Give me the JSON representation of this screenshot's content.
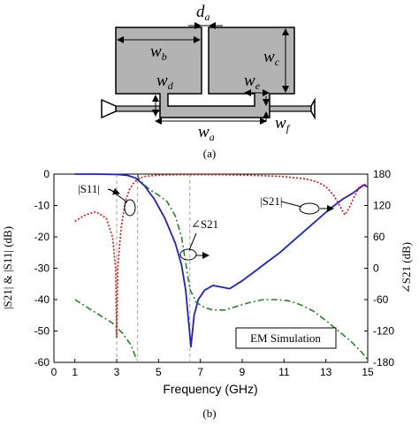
{
  "figure": {
    "panel_a_caption": "(a)",
    "panel_b_caption": "(b)"
  },
  "diagram": {
    "labels": {
      "da_main": "d",
      "da_sub": "a",
      "wb_main": "w",
      "wb_sub": "b",
      "wc_main": "w",
      "wc_sub": "c",
      "wd_main": "w",
      "wd_sub": "d",
      "we_main": "w",
      "we_sub": "e",
      "wa_main": "w",
      "wa_sub": "a",
      "wf_main": "w",
      "wf_sub": "f"
    },
    "colors": {
      "patch_fill": "#b3b3b3",
      "outline": "#000000"
    }
  },
  "chart_data": {
    "type": "line",
    "xlabel": "Frequency (GHz)",
    "ylabel_left": "|S21| & |S11| (dB)",
    "ylabel_right": "∠S21 (dB)",
    "xlim": [
      0,
      15
    ],
    "ylim_left": [
      -60,
      0
    ],
    "ylim_right": [
      -180,
      180
    ],
    "x_ticks": [
      "0",
      "1",
      "3",
      "5",
      "7",
      "9",
      "11",
      "13",
      "15"
    ],
    "x_tick_values": [
      0,
      1,
      3,
      5,
      7,
      9,
      11,
      13,
      15
    ],
    "y_ticks_left": [
      "0",
      "-10",
      "-20",
      "-30",
      "-40",
      "-50",
      "-60"
    ],
    "y_tick_values_left": [
      0,
      -10,
      -20,
      -30,
      -40,
      -50,
      -60
    ],
    "y_ticks_right": [
      "180",
      "120",
      "60",
      "0",
      "-60",
      "-120",
      "-180"
    ],
    "y_tick_values_right": [
      180,
      120,
      60,
      0,
      -60,
      -120,
      -180
    ],
    "grid": "dashed vertical guides at x = 3, 4, 6.5",
    "guide_x": [
      3,
      4,
      6.5
    ],
    "annotations": {
      "s11": "|S11|",
      "s21": "|S21|",
      "phase": "∠S21",
      "box": "EM Simulation"
    },
    "series": [
      {
        "key": "S21",
        "axis": "left",
        "color": "#1f1fd0",
        "style": "solid",
        "x": [
          1,
          2,
          3,
          3.5,
          3.9,
          4.3,
          4.8,
          5.3,
          5.8,
          6.1,
          6.3,
          6.45,
          6.55,
          6.7,
          6.9,
          7.2,
          7.6,
          8.0,
          8.4,
          9.0,
          9.6,
          10.2,
          10.8,
          11.4,
          12.0,
          12.6,
          13.2,
          13.8,
          14.3,
          14.6,
          14.8,
          15.0
        ],
        "y": [
          0,
          0,
          -0.1,
          -0.4,
          -1.2,
          -3.5,
          -8,
          -14,
          -22,
          -29,
          -37,
          -48,
          -55,
          -45,
          -40,
          -37,
          -35.5,
          -36,
          -36.5,
          -34,
          -31,
          -28,
          -25,
          -21.5,
          -18,
          -14.5,
          -11,
          -8,
          -6,
          -4.5,
          -3.5,
          -4
        ]
      },
      {
        "key": "S11",
        "axis": "left",
        "color": "#e01010",
        "style": "dotted",
        "x": [
          1,
          1.5,
          2,
          2.5,
          2.8,
          2.95,
          3.0,
          3.05,
          3.2,
          3.4,
          3.6,
          3.8,
          4.0,
          4.3,
          5.0,
          6.0,
          7.0,
          8.0,
          9.0,
          10.0,
          11.0,
          12.0,
          12.6,
          13.0,
          13.4,
          13.7,
          13.9,
          14.1,
          14.3,
          14.6,
          15.0
        ],
        "y": [
          -15,
          -13,
          -12,
          -14,
          -20,
          -30,
          -52,
          -30,
          -18,
          -9,
          -5,
          -3,
          -1.5,
          -0.8,
          -0.3,
          -0.2,
          -0.2,
          -0.2,
          -0.3,
          -0.5,
          -0.8,
          -1.5,
          -2.5,
          -4,
          -7,
          -10.5,
          -13,
          -11,
          -8,
          -4,
          -3
        ]
      },
      {
        "key": "phase",
        "axis": "right",
        "color": "#2e7d2e",
        "style": "dashdot",
        "x": [
          1,
          1.6,
          2.2,
          2.8,
          3.3,
          3.7,
          3.95,
          4.0,
          4.05,
          4.3,
          4.6,
          5.0,
          5.4,
          5.8,
          6.1,
          6.3,
          6.5,
          6.8,
          7.2,
          7.6,
          8.2,
          8.8,
          9.4,
          10.0,
          10.6,
          11.2,
          11.8,
          12.4,
          13.0,
          13.6,
          14.2,
          14.7,
          15.0
        ],
        "y": [
          -60,
          -75,
          -90,
          -105,
          -125,
          -148,
          -175,
          180,
          172,
          160,
          150,
          140,
          128,
          100,
          60,
          10,
          -40,
          -65,
          -75,
          -80,
          -80,
          -72,
          -65,
          -60,
          -60,
          -62,
          -70,
          -82,
          -100,
          -120,
          -140,
          -160,
          -175
        ]
      }
    ]
  }
}
